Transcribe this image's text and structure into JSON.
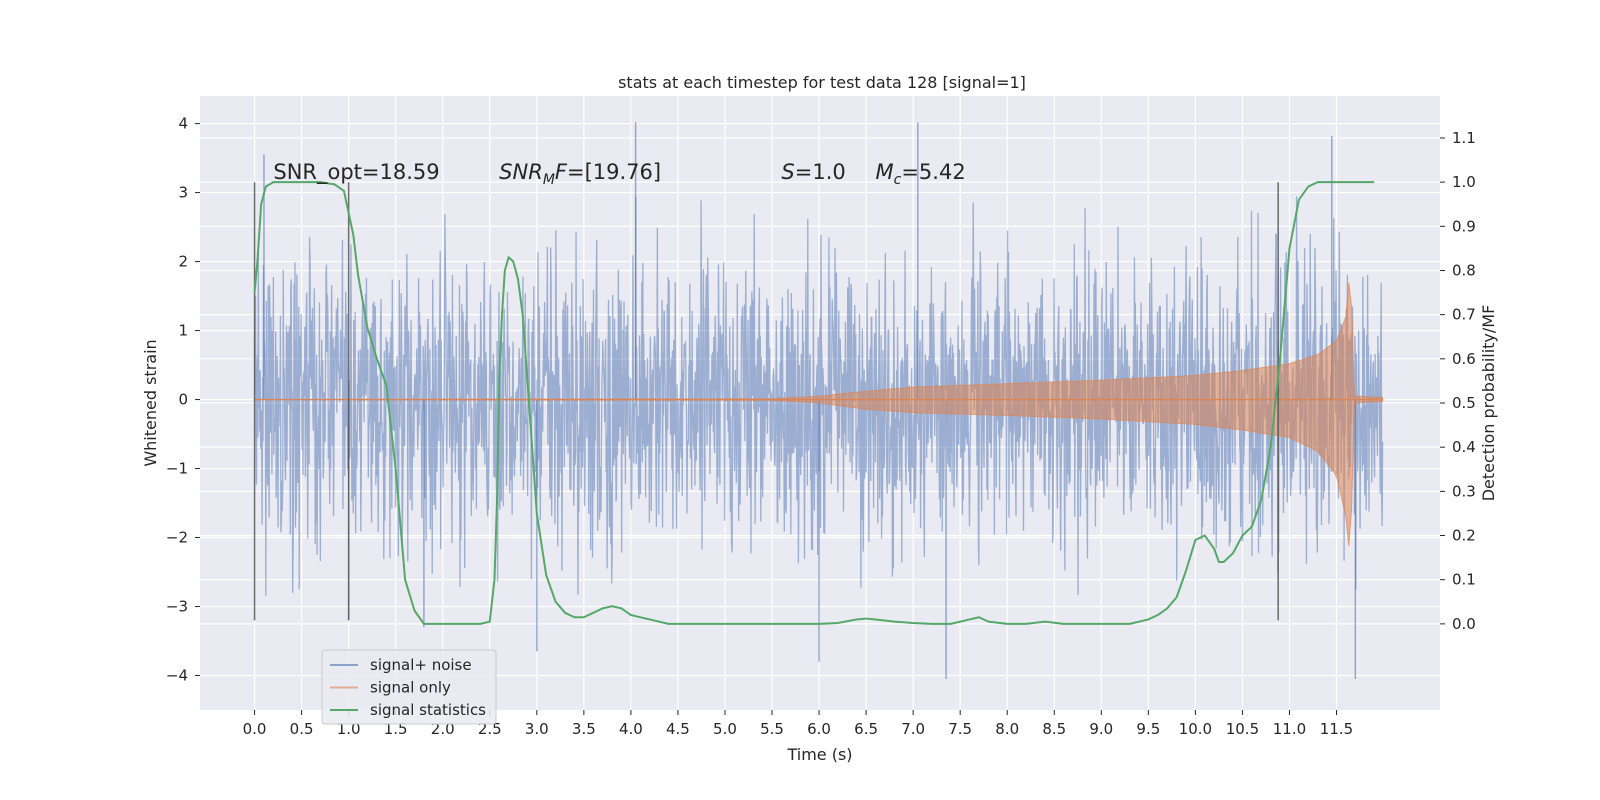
{
  "chart_data": {
    "type": "line",
    "title": "stats at each timestep for test data 128 [signal=1]",
    "xlabel": "Time (s)",
    "ylabel": "Whitened strain",
    "y2label": "Detection probability/MF",
    "xlim": [
      -0.58,
      12.6
    ],
    "ylim": [
      -4.5,
      4.4
    ],
    "y2lim": [
      -0.195,
      1.195
    ],
    "x_ticks": [
      0.0,
      0.5,
      1.0,
      1.5,
      2.0,
      2.5,
      3.0,
      3.5,
      4.0,
      4.5,
      5.0,
      5.5,
      6.0,
      6.5,
      7.0,
      7.5,
      8.0,
      8.5,
      9.0,
      9.5,
      10.0,
      10.5,
      11.0,
      11.5
    ],
    "x_tick_labels": [
      "0.0",
      "0.5",
      "1.0",
      "1.5",
      "2.0",
      "2.5",
      "3.0",
      "3.5",
      "4.0",
      "4.5",
      "5.0",
      "5.5",
      "6.0",
      "6.5",
      "7.0",
      "7.5",
      "8.0",
      "8.5",
      "9.0",
      "9.5",
      "10.0",
      "10.5",
      "11.0",
      "11.5"
    ],
    "y_ticks": [
      -4,
      -3,
      -2,
      -1,
      0,
      1,
      2,
      3,
      4
    ],
    "y_tick_labels": [
      "−4",
      "−3",
      "−2",
      "−1",
      "0",
      "1",
      "2",
      "3",
      "4"
    ],
    "y2_ticks": [
      0.0,
      0.1,
      0.2,
      0.3,
      0.4,
      0.5,
      0.6,
      0.7,
      0.8,
      0.9,
      1.0,
      1.1
    ],
    "y2_tick_labels": [
      "0.0",
      "0.1",
      "0.2",
      "0.3",
      "0.4",
      "0.5",
      "0.6",
      "0.7",
      "0.8",
      "0.9",
      "1.0",
      "1.1"
    ],
    "grid": true,
    "legend_position": "lower-left",
    "colors": {
      "axes_bg": "#eaeaf2",
      "grid": "#ffffff",
      "noise": "#4c72b0",
      "signal": "#dd8452",
      "stats": "#55a868",
      "marker": "#555555"
    },
    "series": [
      {
        "name": "signal+ noise",
        "axis": "left",
        "style": "dense noise band",
        "x_range": [
          0.0,
          11.99
        ],
        "amplitude": 1.7,
        "extremes": [
          [
            0.1,
            3.55
          ],
          [
            4.05,
            4.02
          ],
          [
            7.05,
            4.02
          ],
          [
            11.45,
            3.82
          ],
          [
            3.0,
            -3.65
          ],
          [
            7.35,
            -4.05
          ],
          [
            11.7,
            -4.05
          ],
          [
            6.0,
            -3.8
          ],
          [
            1.0,
            -3.2
          ],
          [
            1.8,
            -3.3
          ]
        ]
      },
      {
        "name": "signal only",
        "axis": "left",
        "style": "chirp envelope",
        "envelope": {
          "x": [
            0.0,
            5.5,
            6.0,
            6.5,
            7.0,
            8.0,
            9.0,
            10.0,
            10.5,
            11.0,
            11.3,
            11.5,
            11.6,
            11.65,
            11.68,
            11.99
          ],
          "upper": [
            0.0,
            0.01,
            0.05,
            0.12,
            0.18,
            0.23,
            0.28,
            0.35,
            0.42,
            0.52,
            0.65,
            0.85,
            1.2,
            2.02,
            0.05,
            0.03
          ],
          "lower": [
            0.0,
            -0.01,
            -0.05,
            -0.14,
            -0.19,
            -0.23,
            -0.28,
            -0.36,
            -0.44,
            -0.55,
            -0.75,
            -1.1,
            -1.7,
            -2.4,
            -0.05,
            -0.03
          ]
        }
      },
      {
        "name": "signal statistics",
        "axis": "right",
        "x": [
          0.0,
          0.03,
          0.07,
          0.12,
          0.2,
          0.3,
          0.5,
          0.7,
          0.85,
          0.95,
          1.0,
          1.05,
          1.1,
          1.2,
          1.3,
          1.4,
          1.5,
          1.6,
          1.7,
          1.8,
          1.9,
          2.0,
          2.2,
          2.4,
          2.5,
          2.55,
          2.58,
          2.6,
          2.63,
          2.66,
          2.7,
          2.75,
          2.8,
          2.85,
          2.9,
          3.0,
          3.1,
          3.2,
          3.3,
          3.4,
          3.5,
          3.6,
          3.7,
          3.8,
          3.9,
          4.0,
          4.2,
          4.4,
          4.6,
          5.0,
          5.5,
          6.0,
          6.2,
          6.4,
          6.5,
          6.6,
          6.8,
          7.0,
          7.2,
          7.4,
          7.6,
          7.7,
          7.8,
          8.0,
          8.2,
          8.4,
          8.6,
          9.0,
          9.3,
          9.5,
          9.6,
          9.7,
          9.8,
          9.9,
          10.0,
          10.1,
          10.2,
          10.25,
          10.3,
          10.4,
          10.5,
          10.6,
          10.7,
          10.8,
          10.9,
          11.0,
          11.1,
          11.2,
          11.3,
          11.5,
          11.9
        ],
        "y": [
          0.75,
          0.82,
          0.95,
          0.99,
          1.0,
          1.0,
          1.0,
          1.0,
          0.995,
          0.98,
          0.93,
          0.88,
          0.79,
          0.67,
          0.6,
          0.54,
          0.35,
          0.1,
          0.03,
          0.0,
          0.0,
          0.0,
          0.0,
          0.0,
          0.005,
          0.1,
          0.3,
          0.55,
          0.7,
          0.8,
          0.83,
          0.82,
          0.78,
          0.7,
          0.55,
          0.25,
          0.11,
          0.05,
          0.025,
          0.015,
          0.015,
          0.025,
          0.035,
          0.04,
          0.035,
          0.02,
          0.01,
          0.0,
          0.0,
          0.0,
          0.0,
          0.0,
          0.002,
          0.01,
          0.012,
          0.01,
          0.005,
          0.002,
          0.0,
          0.0,
          0.01,
          0.015,
          0.005,
          0.0,
          0.0,
          0.005,
          0.0,
          0.0,
          0.0,
          0.01,
          0.02,
          0.035,
          0.06,
          0.12,
          0.19,
          0.2,
          0.17,
          0.14,
          0.14,
          0.16,
          0.2,
          0.22,
          0.28,
          0.4,
          0.6,
          0.85,
          0.96,
          0.99,
          1.0,
          1.0,
          1.0
        ]
      }
    ],
    "markers": [
      {
        "x": 0.0,
        "y1": -3.2,
        "y2": 3.15
      },
      {
        "x": 1.0,
        "y1": -3.2,
        "y2": 3.15
      },
      {
        "x": 10.88,
        "y1": -3.2,
        "y2": 3.15
      }
    ],
    "annotations": [
      {
        "x": 0.2,
        "y": 3.2,
        "parts": [
          {
            "text": "SNR_opt=18.59",
            "italic": false
          }
        ]
      },
      {
        "x": 2.6,
        "y": 3.2,
        "parts": [
          {
            "text": "SNR",
            "italic": true
          },
          {
            "text": "M",
            "italic": true,
            "sub": true
          },
          {
            "text": "F",
            "italic": true
          },
          {
            "text": "=[19.76]",
            "italic": false
          }
        ]
      },
      {
        "x": 5.6,
        "y": 3.2,
        "parts": [
          {
            "text": "S",
            "italic": true
          },
          {
            "text": "=1.0",
            "italic": false
          }
        ]
      },
      {
        "x": 6.6,
        "y": 3.2,
        "parts": [
          {
            "text": "M",
            "italic": true
          },
          {
            "text": "c",
            "italic": true,
            "sub": true
          },
          {
            "text": "=5.42",
            "italic": false
          }
        ]
      }
    ]
  }
}
